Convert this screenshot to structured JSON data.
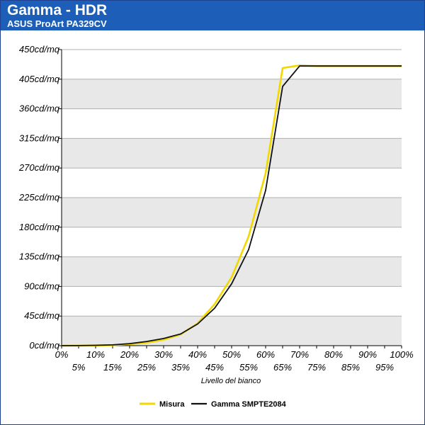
{
  "chart_data": {
    "type": "line",
    "title": "Gamma - HDR",
    "subtitle": "ASUS ProArt PA329CV",
    "xlabel": "Livello del bianco",
    "ylabel": "",
    "x": [
      0,
      5,
      10,
      15,
      20,
      25,
      30,
      35,
      40,
      45,
      50,
      55,
      60,
      65,
      70,
      75,
      80,
      85,
      90,
      95,
      100
    ],
    "x_tick_labels": [
      "0%",
      "5%",
      "10%",
      "15%",
      "20%",
      "25%",
      "30%",
      "35%",
      "40%",
      "45%",
      "50%",
      "55%",
      "60%",
      "65%",
      "70%",
      "75%",
      "80%",
      "85%",
      "90%",
      "95%",
      "100%"
    ],
    "xlim": [
      0,
      100
    ],
    "ylim": [
      0,
      450
    ],
    "y_ticks": [
      0,
      45,
      90,
      135,
      180,
      225,
      270,
      315,
      360,
      405,
      450
    ],
    "y_tick_labels": [
      "0cd/mq",
      "45cd/mq",
      "90cd/mq",
      "135cd/mq",
      "180cd/mq",
      "225cd/mq",
      "270cd/mq",
      "315cd/mq",
      "360cd/mq",
      "405cd/mq",
      "450cd/mq"
    ],
    "grid": "horizontal bands",
    "legend_position": "bottom",
    "series": [
      {
        "name": "Misura",
        "color": "#f0d800",
        "values": [
          0,
          0.1,
          0.3,
          0.8,
          2.2,
          4.5,
          9,
          17,
          34,
          63,
          104,
          166,
          262,
          422,
          426,
          425,
          425,
          425,
          425,
          425,
          425
        ]
      },
      {
        "name": "Gamma SMPTE2084",
        "color": "#111111",
        "values": [
          0,
          0.1,
          0.5,
          1.2,
          3.1,
          6.4,
          10.9,
          17.8,
          32.9,
          57,
          94,
          146,
          236,
          394,
          425,
          425,
          425,
          425,
          425,
          425,
          425
        ]
      }
    ]
  },
  "colors": {
    "header_bg": "#1d5fb8",
    "band_gray": "#e8e8e8",
    "band_white": "#ffffff"
  }
}
